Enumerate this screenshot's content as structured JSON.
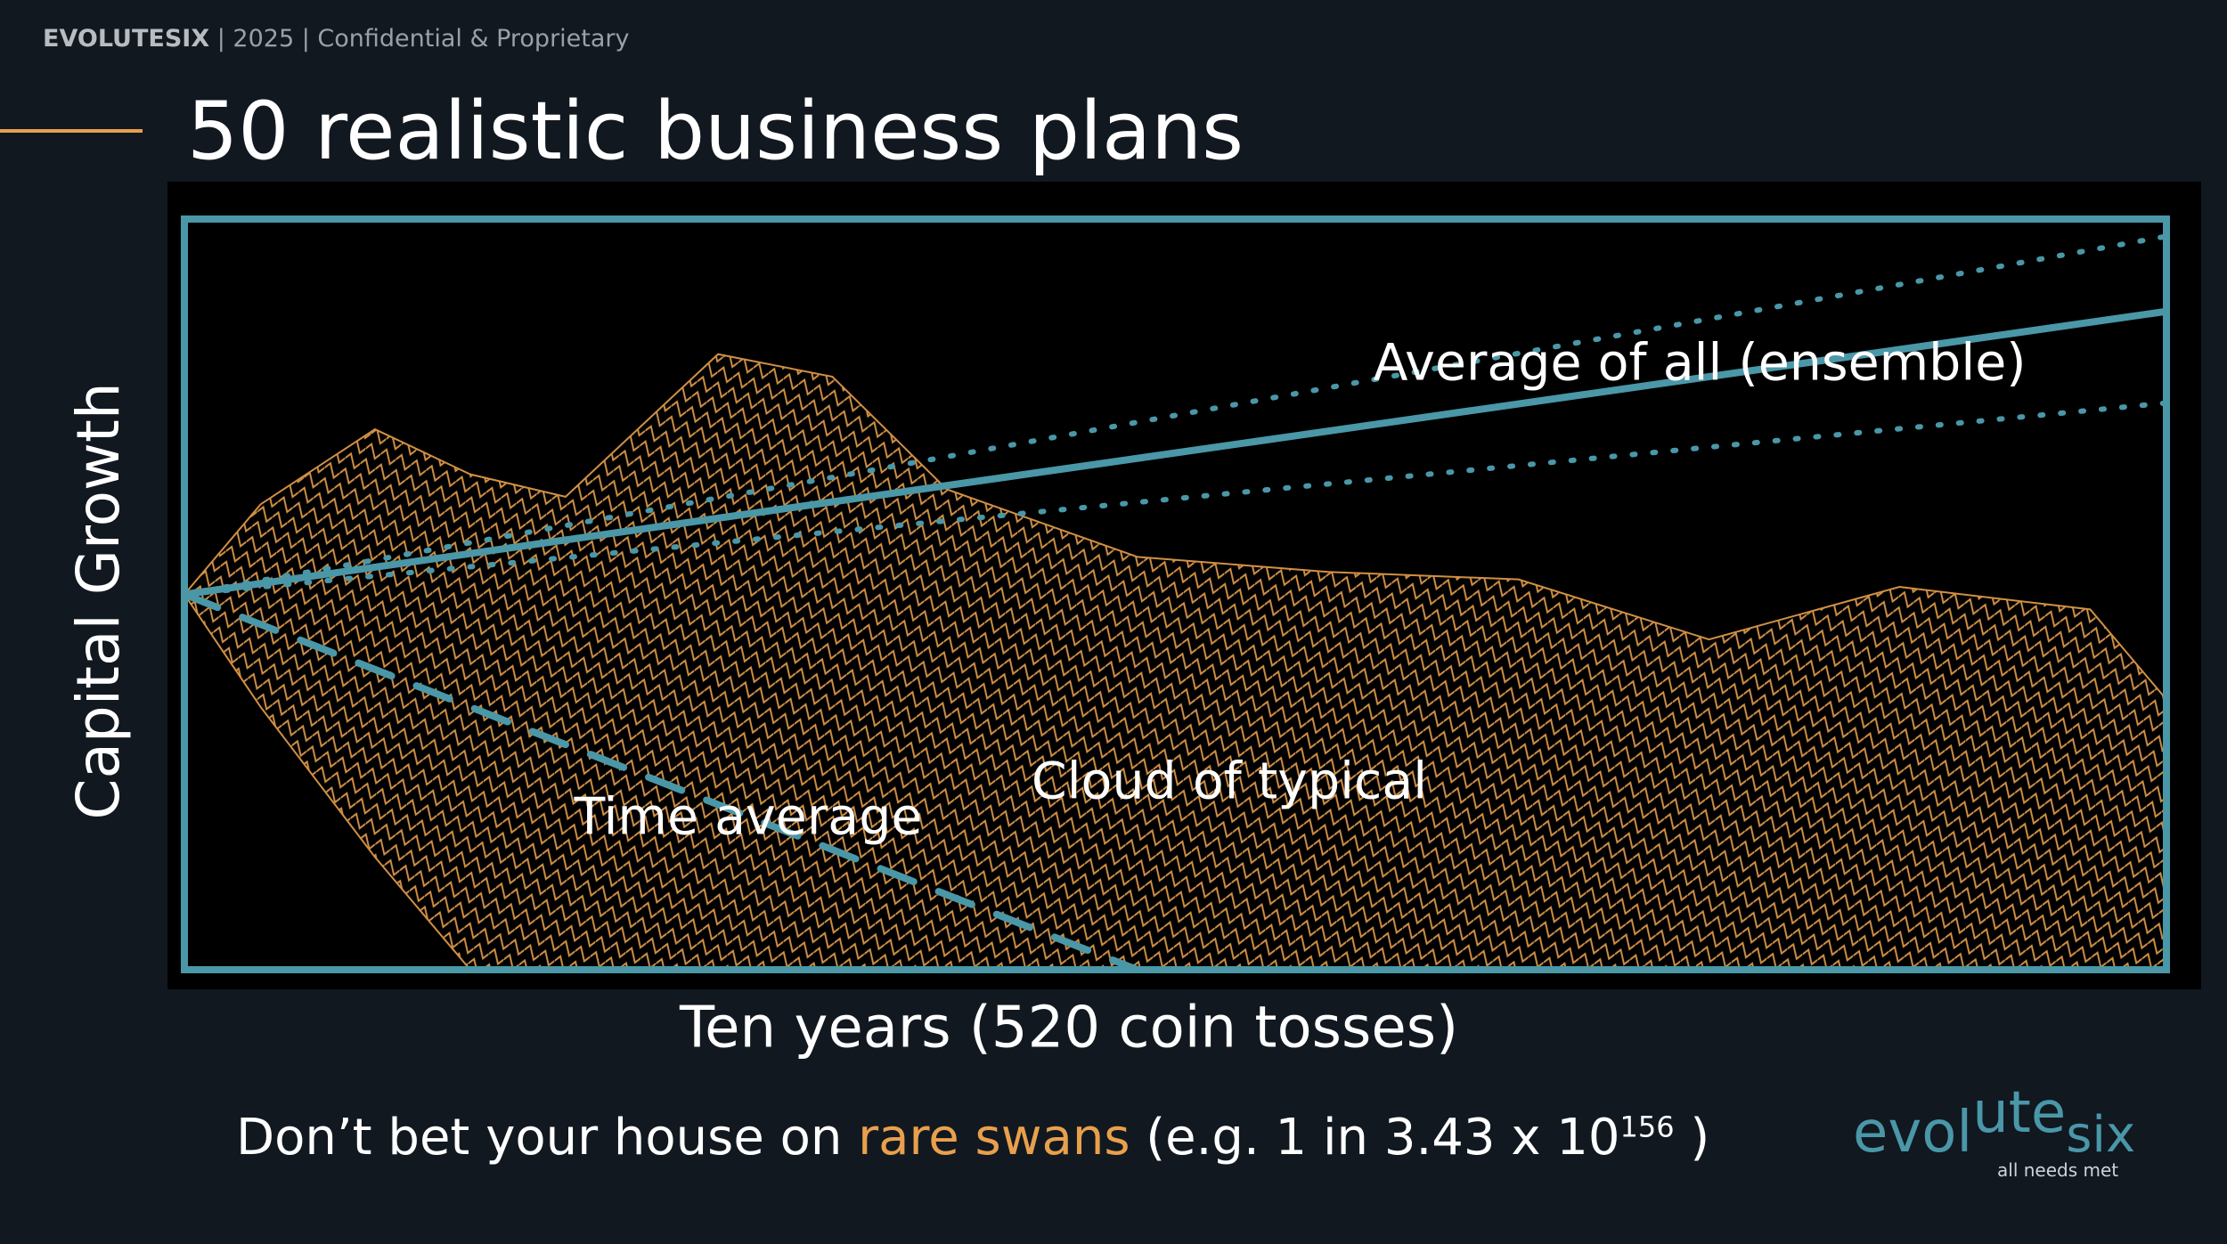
{
  "header": {
    "brand": "EVOLUTESIX",
    "rest": " | 2025 | Confidential & Proprietary"
  },
  "title": "50 realistic business plans",
  "chart_data": {
    "type": "line",
    "x_label": "Ten years (520 coin tosses)",
    "y_label": "Capital Growth",
    "xlim": [
      0,
      520
    ],
    "ylim": [
      0,
      1
    ],
    "series": [
      {
        "name": "Cloud of typical",
        "color": "#e8a04c",
        "style": "cloud",
        "x": [
          0,
          20,
          50,
          75,
          100,
          140,
          170,
          200,
          250,
          300,
          350,
          400,
          450,
          500,
          520
        ],
        "values": [
          0.5,
          0.62,
          0.72,
          0.66,
          0.63,
          0.82,
          0.79,
          0.64,
          0.55,
          0.53,
          0.52,
          0.44,
          0.51,
          0.48,
          0.36
        ],
        "low": [
          0.5,
          0.35,
          0.15,
          0,
          0,
          0,
          0,
          0,
          0,
          0,
          0,
          0,
          0,
          0,
          0
        ]
      },
      {
        "name": "Average of all (ensemble)",
        "color": "#4a97a8",
        "style": "solid",
        "x": [
          0,
          520
        ],
        "values": [
          0.5,
          0.877
        ]
      },
      {
        "color": "#4a97a8",
        "style": "dotted",
        "x": [
          0,
          520
        ],
        "values": [
          0.5,
          0.977
        ]
      },
      {
        "color": "#4a97a8",
        "style": "dotted",
        "x": [
          0,
          520
        ],
        "values": [
          0.5,
          0.755
        ]
      },
      {
        "name": "Time average",
        "color": "#4a97a8",
        "style": "dashed",
        "x": [
          0,
          250
        ],
        "values": [
          0.5,
          0
        ]
      }
    ]
  },
  "footer": {
    "part1": "Don’t bet your house on ",
    "highlight": "rare swans",
    "part2": " (e.g. 1 in 3.43 x 10",
    "exponent": "156",
    "part3": " )"
  },
  "logo": {
    "a": "evol",
    "b": "ute",
    "c": "six",
    "tagline": "all needs met"
  }
}
